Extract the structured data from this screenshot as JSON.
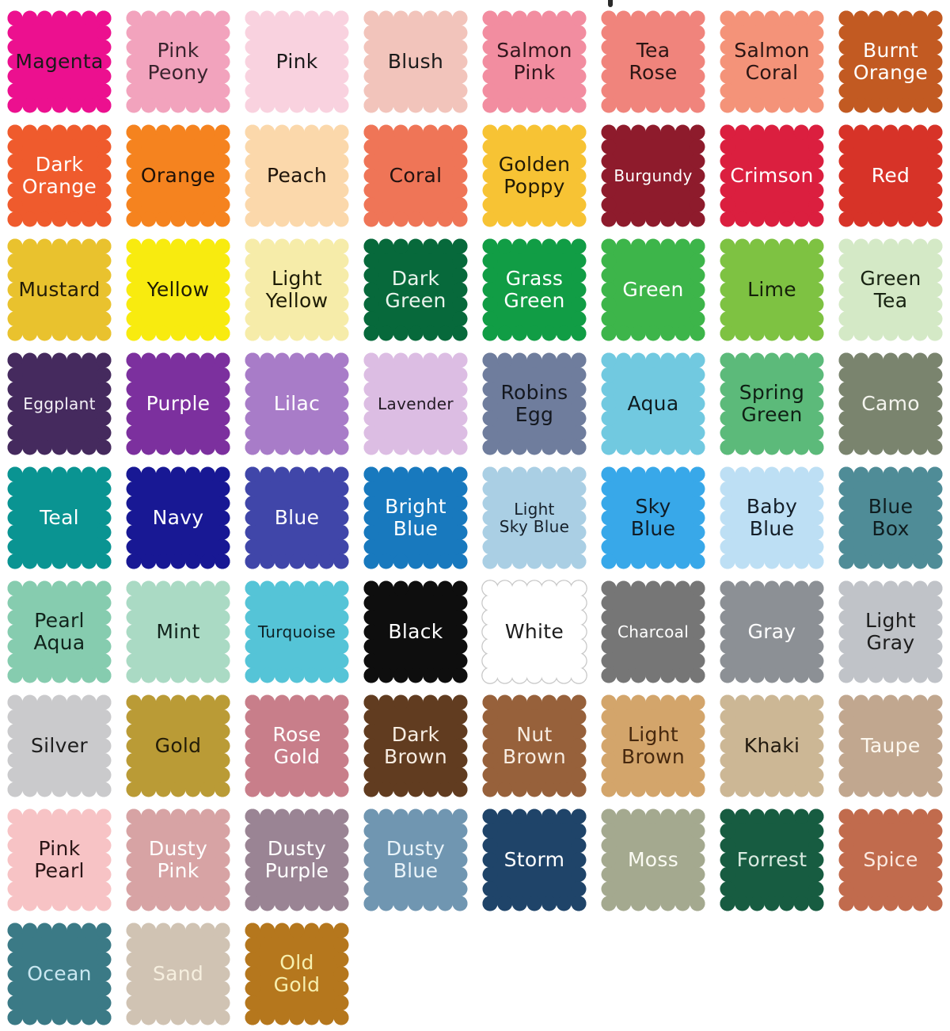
{
  "decor": {
    "top_artifact_color": "#2a2a2a"
  },
  "swatches": [
    {
      "label": "Magenta",
      "color": "#EC108F",
      "text_color": "#1a1a1a"
    },
    {
      "label": "Pink\nPeony",
      "color": "#F2A3BD",
      "text_color": "#3a242e"
    },
    {
      "label": "Pink",
      "color": "#F9D2DF",
      "text_color": "#1a1a1a"
    },
    {
      "label": "Blush",
      "color": "#F2C4BB",
      "text_color": "#1a1a1a"
    },
    {
      "label": "Salmon\nPink",
      "color": "#F28DA0",
      "text_color": "#33171d"
    },
    {
      "label": "Tea\nRose",
      "color": "#F0847C",
      "text_color": "#2b1513"
    },
    {
      "label": "Salmon\nCoral",
      "color": "#F49379",
      "text_color": "#2b1513"
    },
    {
      "label": "Burnt\nOrange",
      "color": "#C25A22",
      "text_color": "#ffffff"
    },
    {
      "label": "Dark\nOrange",
      "color": "#EF5B2D",
      "text_color": "#ffffff"
    },
    {
      "label": "Orange",
      "color": "#F5831F",
      "text_color": "#201208"
    },
    {
      "label": "Peach",
      "color": "#FBD8AB",
      "text_color": "#1f140a"
    },
    {
      "label": "Coral",
      "color": "#EF7557",
      "text_color": "#231210"
    },
    {
      "label": "Golden\nPoppy",
      "color": "#F7C334",
      "text_color": "#211a06"
    },
    {
      "label": "Burgundy",
      "color": "#8E1B2C",
      "text_color": "#ffffff"
    },
    {
      "label": "Crimson",
      "color": "#DB1F3F",
      "text_color": "#ffffff"
    },
    {
      "label": "Red",
      "color": "#D73328",
      "text_color": "#ffffff"
    },
    {
      "label": "Mustard",
      "color": "#E9C22E",
      "text_color": "#231c07"
    },
    {
      "label": "Yellow",
      "color": "#F8EB0F",
      "text_color": "#1e1c05"
    },
    {
      "label": "Light\nYellow",
      "color": "#F6ECA9",
      "text_color": "#1e1c05"
    },
    {
      "label": "Dark\nGreen",
      "color": "#07693B",
      "text_color": "#e9f4ec"
    },
    {
      "label": "Grass\nGreen",
      "color": "#119D45",
      "text_color": "#ffffff"
    },
    {
      "label": "Green",
      "color": "#3DB54A",
      "text_color": "#ffffff"
    },
    {
      "label": "Lime",
      "color": "#7EC242",
      "text_color": "#15200a"
    },
    {
      "label": "Green\nTea",
      "color": "#D4E9C6",
      "text_color": "#182312"
    },
    {
      "label": "Eggplant",
      "color": "#452A5E",
      "text_color": "#f4f1f7"
    },
    {
      "label": "Purple",
      "color": "#7C309E",
      "text_color": "#ffffff"
    },
    {
      "label": "Lilac",
      "color": "#A87CC8",
      "text_color": "#ffffff"
    },
    {
      "label": "Lavender",
      "color": "#DCBDE3",
      "text_color": "#231b25"
    },
    {
      "label": "Robins\nEgg",
      "color": "#6F7D9D",
      "text_color": "#14181f"
    },
    {
      "label": "Aqua",
      "color": "#71C9E0",
      "text_color": "#0f1c20"
    },
    {
      "label": "Spring\nGreen",
      "color": "#5CBA7A",
      "text_color": "#0f1f14"
    },
    {
      "label": "Camo",
      "color": "#7A846E",
      "text_color": "#f4f4ee"
    },
    {
      "label": "Teal",
      "color": "#0A9492",
      "text_color": "#ffffff"
    },
    {
      "label": "Navy",
      "color": "#181894",
      "text_color": "#ffffff"
    },
    {
      "label": "Blue",
      "color": "#4046A9",
      "text_color": "#ffffff"
    },
    {
      "label": "Bright\nBlue",
      "color": "#1879BE",
      "text_color": "#ffffff"
    },
    {
      "label": "Light\nSky Blue",
      "color": "#AACFE4",
      "text_color": "#16202a"
    },
    {
      "label": "Sky\nBlue",
      "color": "#38A8E9",
      "text_color": "#101c26"
    },
    {
      "label": "Baby\nBlue",
      "color": "#BDDFF4",
      "text_color": "#141e28"
    },
    {
      "label": "Blue\nBox",
      "color": "#4F8C97",
      "text_color": "#0f1c1f"
    },
    {
      "label": "Pearl\nAqua",
      "color": "#86CCAF",
      "text_color": "#11241c"
    },
    {
      "label": "Mint",
      "color": "#AADAC4",
      "text_color": "#12241c"
    },
    {
      "label": "Turquoise",
      "color": "#55C4D7",
      "text_color": "#0e2226"
    },
    {
      "label": "Black",
      "color": "#0E0E0E",
      "text_color": "#ffffff"
    },
    {
      "label": "White",
      "color": "#FFFFFF",
      "text_color": "#1c1c1c",
      "border": "#c8c8c8"
    },
    {
      "label": "Charcoal",
      "color": "#767676",
      "text_color": "#ffffff"
    },
    {
      "label": "Gray",
      "color": "#8C9095",
      "text_color": "#ffffff"
    },
    {
      "label": "Light\nGray",
      "color": "#C0C3C8",
      "text_color": "#1d1d1d"
    },
    {
      "label": "Silver",
      "color": "#CACACC",
      "text_color": "#1d1d1d"
    },
    {
      "label": "Gold",
      "color": "#BA9B36",
      "text_color": "#231c08"
    },
    {
      "label": "Rose\nGold",
      "color": "#C87E8A",
      "text_color": "#ffffff"
    },
    {
      "label": "Dark\nBrown",
      "color": "#613C20",
      "text_color": "#f7ede2"
    },
    {
      "label": "Nut\nBrown",
      "color": "#97613B",
      "text_color": "#f7ede2"
    },
    {
      "label": "Light\nBrown",
      "color": "#D3A56B",
      "text_color": "#46280e"
    },
    {
      "label": "Khaki",
      "color": "#CCB795",
      "text_color": "#221a0f"
    },
    {
      "label": "Taupe",
      "color": "#C1A78F",
      "text_color": "#fdf8ef"
    },
    {
      "label": "Pink\nPearl",
      "color": "#F7C3C5",
      "text_color": "#2a1516"
    },
    {
      "label": "Dusty\nPink",
      "color": "#D7A3A4",
      "text_color": "#ffffff"
    },
    {
      "label": "Dusty\nPurple",
      "color": "#9A8494",
      "text_color": "#ffffff"
    },
    {
      "label": "Dusty\nBlue",
      "color": "#7096B1",
      "text_color": "#eaf4fa"
    },
    {
      "label": "Storm",
      "color": "#1F4469",
      "text_color": "#ffffff"
    },
    {
      "label": "Moss",
      "color": "#A4A98F",
      "text_color": "#fbfbf3"
    },
    {
      "label": "Forrest",
      "color": "#175C41",
      "text_color": "#d9eae0"
    },
    {
      "label": "Spice",
      "color": "#C16B4D",
      "text_color": "#fbe9e0"
    },
    {
      "label": "Ocean",
      "color": "#3B7A86",
      "text_color": "#c9e7f1"
    },
    {
      "label": "Sand",
      "color": "#D0C3B3",
      "text_color": "#f6efdf"
    },
    {
      "label": "Old\nGold",
      "color": "#B5771D",
      "text_color": "#f7f0af"
    }
  ]
}
